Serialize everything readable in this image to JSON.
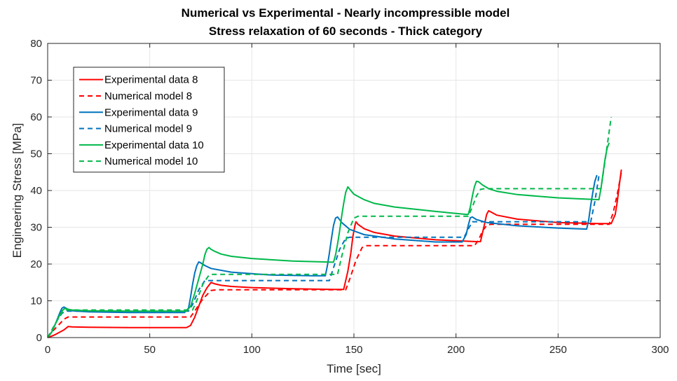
{
  "chart_data": {
    "type": "line",
    "title": "Numerical vs Experimental - Nearly incompressible model",
    "subtitle": "Stress relaxation of 60 seconds - Thick category",
    "xlabel": "Time [sec]",
    "ylabel": "Engineering Stress [MPa]",
    "xlim": [
      0,
      300
    ],
    "ylim": [
      0,
      80
    ],
    "xticks": [
      "0",
      "50",
      "100",
      "150",
      "200",
      "250",
      "300"
    ],
    "yticks": [
      "0",
      "10",
      "20",
      "30",
      "40",
      "50",
      "60",
      "70",
      "80"
    ],
    "grid": true,
    "legend_position": "top-left",
    "series": [
      {
        "name": "Experimental data 8",
        "color": "#ff0000",
        "dash": "solid",
        "x": [
          0,
          2,
          4,
          6,
          8,
          10,
          12,
          20,
          40,
          60,
          68,
          70,
          72,
          74,
          76,
          78,
          79.5,
          80,
          82,
          85,
          90,
          100,
          120,
          140,
          145,
          147,
          148.5,
          149.5,
          150.5,
          151,
          152,
          155,
          160,
          170,
          190,
          210,
          212,
          213,
          214,
          215,
          216,
          220,
          230,
          250,
          270,
          276,
          278,
          279,
          280,
          281
        ],
        "y": [
          0,
          0.4,
          0.9,
          1.5,
          2.1,
          3.0,
          2.9,
          2.8,
          2.7,
          2.7,
          2.7,
          3.3,
          5.5,
          8.5,
          11.5,
          13.5,
          14.6,
          15.0,
          14.6,
          14.2,
          13.9,
          13.6,
          13.3,
          13.1,
          13.1,
          18.0,
          23.0,
          27.5,
          30.5,
          31.5,
          30.8,
          29.6,
          28.6,
          27.6,
          26.6,
          26.1,
          26.1,
          28.5,
          31.0,
          33.5,
          34.5,
          33.3,
          32.2,
          31.3,
          31.0,
          31.0,
          33.5,
          37.0,
          41.5,
          45.7
        ]
      },
      {
        "name": "Numerical model 8",
        "color": "#ff0000",
        "dash": "dashed",
        "x": [
          0,
          2,
          5,
          8,
          10,
          12,
          70,
          72,
          76,
          80,
          83,
          146,
          148,
          151,
          154,
          156,
          209,
          211,
          213,
          215,
          217,
          275,
          277,
          279,
          281
        ],
        "y": [
          0,
          1.5,
          3.2,
          5.0,
          5.6,
          5.6,
          5.6,
          7.2,
          10.5,
          12.8,
          13.0,
          13.0,
          16.0,
          21.0,
          24.5,
          25.0,
          25.0,
          26.5,
          29.0,
          30.5,
          30.8,
          30.8,
          34.0,
          39.0,
          45.0
        ]
      },
      {
        "name": "Experimental data 9",
        "color": "#0072bd",
        "dash": "solid",
        "x": [
          0,
          2,
          4,
          6,
          7,
          8,
          9,
          10,
          12,
          20,
          40,
          60,
          67,
          69,
          70,
          71,
          72,
          73,
          74,
          75,
          77,
          80,
          90,
          110,
          130,
          136,
          137,
          138,
          139,
          140,
          141,
          142,
          144,
          148,
          155,
          170,
          190,
          200,
          203,
          205,
          206,
          207,
          208,
          210,
          215,
          230,
          250,
          264,
          265,
          266,
          267,
          268,
          269
        ],
        "y": [
          0,
          1.5,
          4.0,
          6.8,
          8.0,
          8.3,
          8.0,
          7.7,
          7.3,
          7.0,
          6.8,
          6.8,
          6.8,
          8.0,
          11.0,
          14.5,
          17.5,
          19.5,
          20.6,
          20.3,
          19.6,
          18.8,
          17.8,
          17.0,
          16.8,
          16.8,
          19.5,
          23.0,
          27.0,
          30.5,
          32.5,
          32.8,
          31.3,
          29.4,
          28.0,
          26.8,
          26.0,
          26.0,
          26.0,
          28.0,
          30.5,
          32.6,
          32.8,
          32.1,
          31.3,
          30.4,
          29.8,
          29.5,
          32.0,
          36.0,
          39.5,
          42.5,
          44.2
        ]
      },
      {
        "name": "Numerical model 9",
        "color": "#0072bd",
        "dash": "dashed",
        "x": [
          0,
          2,
          5,
          7,
          9,
          11,
          69,
          71,
          74,
          77,
          79,
          138,
          140,
          143,
          146,
          148,
          204,
          206,
          208,
          210,
          266,
          268,
          270
        ],
        "y": [
          0,
          2.0,
          5.0,
          6.6,
          7.2,
          7.2,
          7.2,
          9.0,
          13.0,
          15.5,
          15.5,
          15.5,
          19.0,
          24.0,
          27.0,
          27.3,
          27.3,
          29.5,
          31.5,
          31.5,
          31.5,
          37.0,
          44.0
        ]
      },
      {
        "name": "Experimental data 10",
        "color": "#00b84a",
        "dash": "solid",
        "x": [
          0,
          2,
          4,
          6,
          7,
          8,
          9,
          10,
          12,
          20,
          40,
          60,
          68,
          70,
          72,
          74,
          76,
          77,
          78,
          79,
          80,
          82,
          85,
          90,
          100,
          120,
          140,
          141,
          142,
          143,
          144,
          145,
          146,
          147,
          148,
          150,
          155,
          160,
          170,
          190,
          205,
          206,
          207,
          208,
          209,
          210,
          211,
          213,
          216,
          220,
          230,
          250,
          270,
          271,
          272,
          273,
          274,
          275
        ],
        "y": [
          0,
          1.5,
          4.0,
          6.2,
          7.2,
          7.8,
          7.9,
          7.7,
          7.5,
          7.3,
          7.2,
          7.2,
          7.2,
          8.5,
          12.0,
          16.0,
          20.0,
          22.5,
          24.0,
          24.5,
          24.0,
          23.4,
          22.7,
          22.1,
          21.5,
          20.8,
          20.5,
          22.5,
          25.5,
          29.0,
          33.0,
          36.5,
          39.5,
          41.0,
          40.3,
          39.0,
          37.5,
          36.5,
          35.5,
          34.3,
          33.5,
          33.5,
          35.5,
          38.5,
          41.0,
          42.5,
          42.4,
          41.5,
          40.5,
          39.8,
          38.9,
          38.0,
          37.5,
          40.5,
          44.5,
          48.5,
          51.5,
          53.0
        ]
      },
      {
        "name": "Numerical model 10",
        "color": "#00b84a",
        "dash": "dashed",
        "x": [
          0,
          2,
          5,
          7,
          9,
          11,
          71,
          73,
          76,
          79,
          81,
          142,
          144,
          147,
          150,
          152,
          206,
          208,
          210,
          212,
          214,
          271,
          273,
          275,
          276
        ],
        "y": [
          0,
          2.0,
          5.0,
          6.8,
          7.5,
          7.5,
          7.5,
          10.0,
          14.5,
          17.0,
          17.2,
          17.2,
          22.0,
          28.5,
          32.5,
          33.0,
          33.0,
          35.5,
          38.5,
          40.3,
          40.5,
          40.5,
          48.0,
          56.0,
          60.0
        ]
      }
    ]
  }
}
